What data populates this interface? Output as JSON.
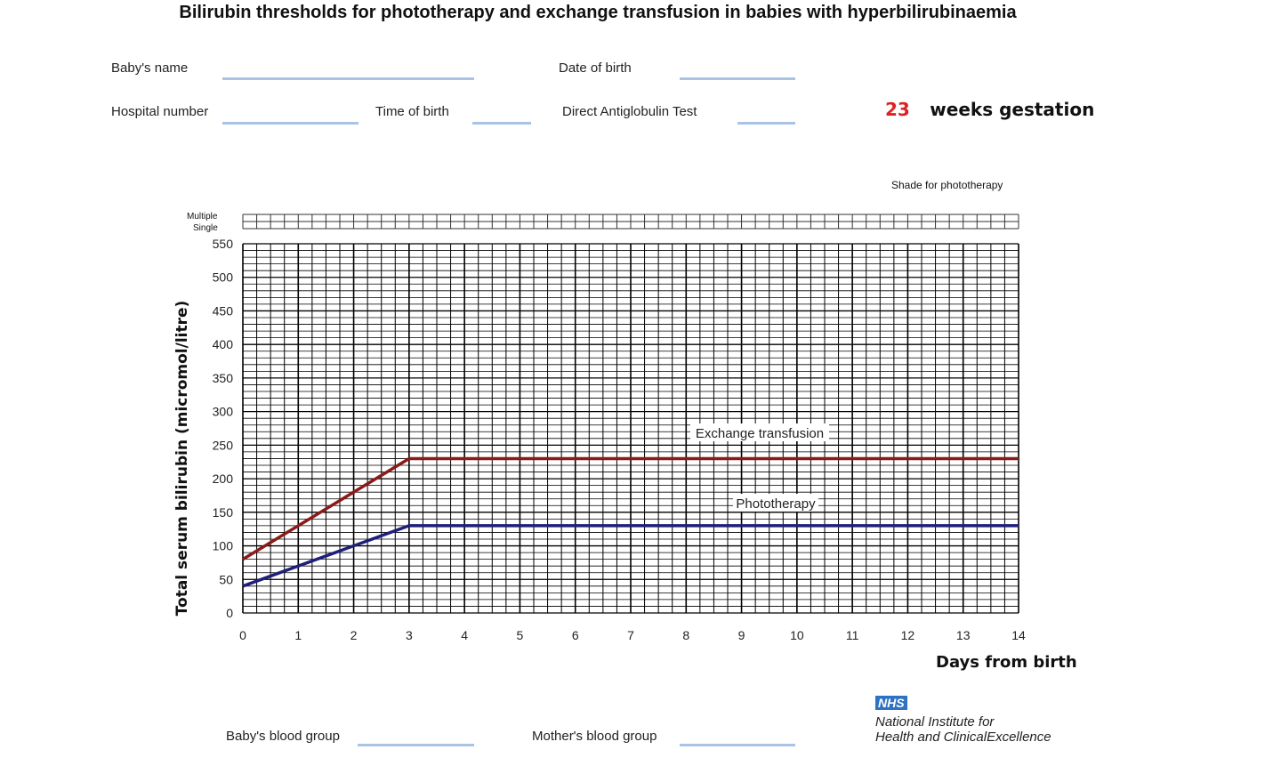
{
  "title": "Bilirubin thresholds for phototherapy and exchange transfusion in babies with hyperbilirubinaemia",
  "form": {
    "babys_name": "Baby's name",
    "date_of_birth": "Date of birth",
    "hospital_number": "Hospital number",
    "time_of_birth": "Time of birth",
    "direct_antiglobulin_test": "Direct Antiglobulin Test",
    "babys_blood_group": "Baby's blood group",
    "mothers_blood_group": "Mother's blood group"
  },
  "gestation": {
    "weeks": "23",
    "label": "weeks gestation"
  },
  "shade_note": "Shade for phototherapy",
  "therapy_rows": {
    "multiple": "Multiple",
    "single": "Single"
  },
  "footer": {
    "nhs": "NHS",
    "line1": "National Institute for",
    "line2": "Health and ClinicalExcellence"
  },
  "colors": {
    "exchange": "#8b1a1a",
    "phototherapy": "#1f1f7a",
    "blank_line": "#a9c3e6",
    "nhs_blue": "#2e72c4",
    "gestation": "#e02020"
  },
  "chart_data": {
    "type": "line",
    "xlabel": "Days from birth",
    "ylabel": "Total serum bilirubin  (micromol/litre)",
    "xlim": [
      0,
      14
    ],
    "ylim": [
      0,
      550
    ],
    "xticks": [
      0,
      1,
      2,
      3,
      4,
      5,
      6,
      7,
      8,
      9,
      10,
      11,
      12,
      13,
      14
    ],
    "yticks": [
      0,
      50,
      100,
      150,
      200,
      250,
      300,
      350,
      400,
      450,
      500,
      550
    ],
    "grid": true,
    "series": [
      {
        "name": "Exchange transfusion",
        "color": "#8b1a1a",
        "x": [
          0,
          3,
          14
        ],
        "y": [
          80,
          230,
          230
        ]
      },
      {
        "name": "Phototherapy",
        "color": "#1f1f7a",
        "x": [
          0,
          3,
          14
        ],
        "y": [
          40,
          130,
          130
        ]
      }
    ]
  }
}
